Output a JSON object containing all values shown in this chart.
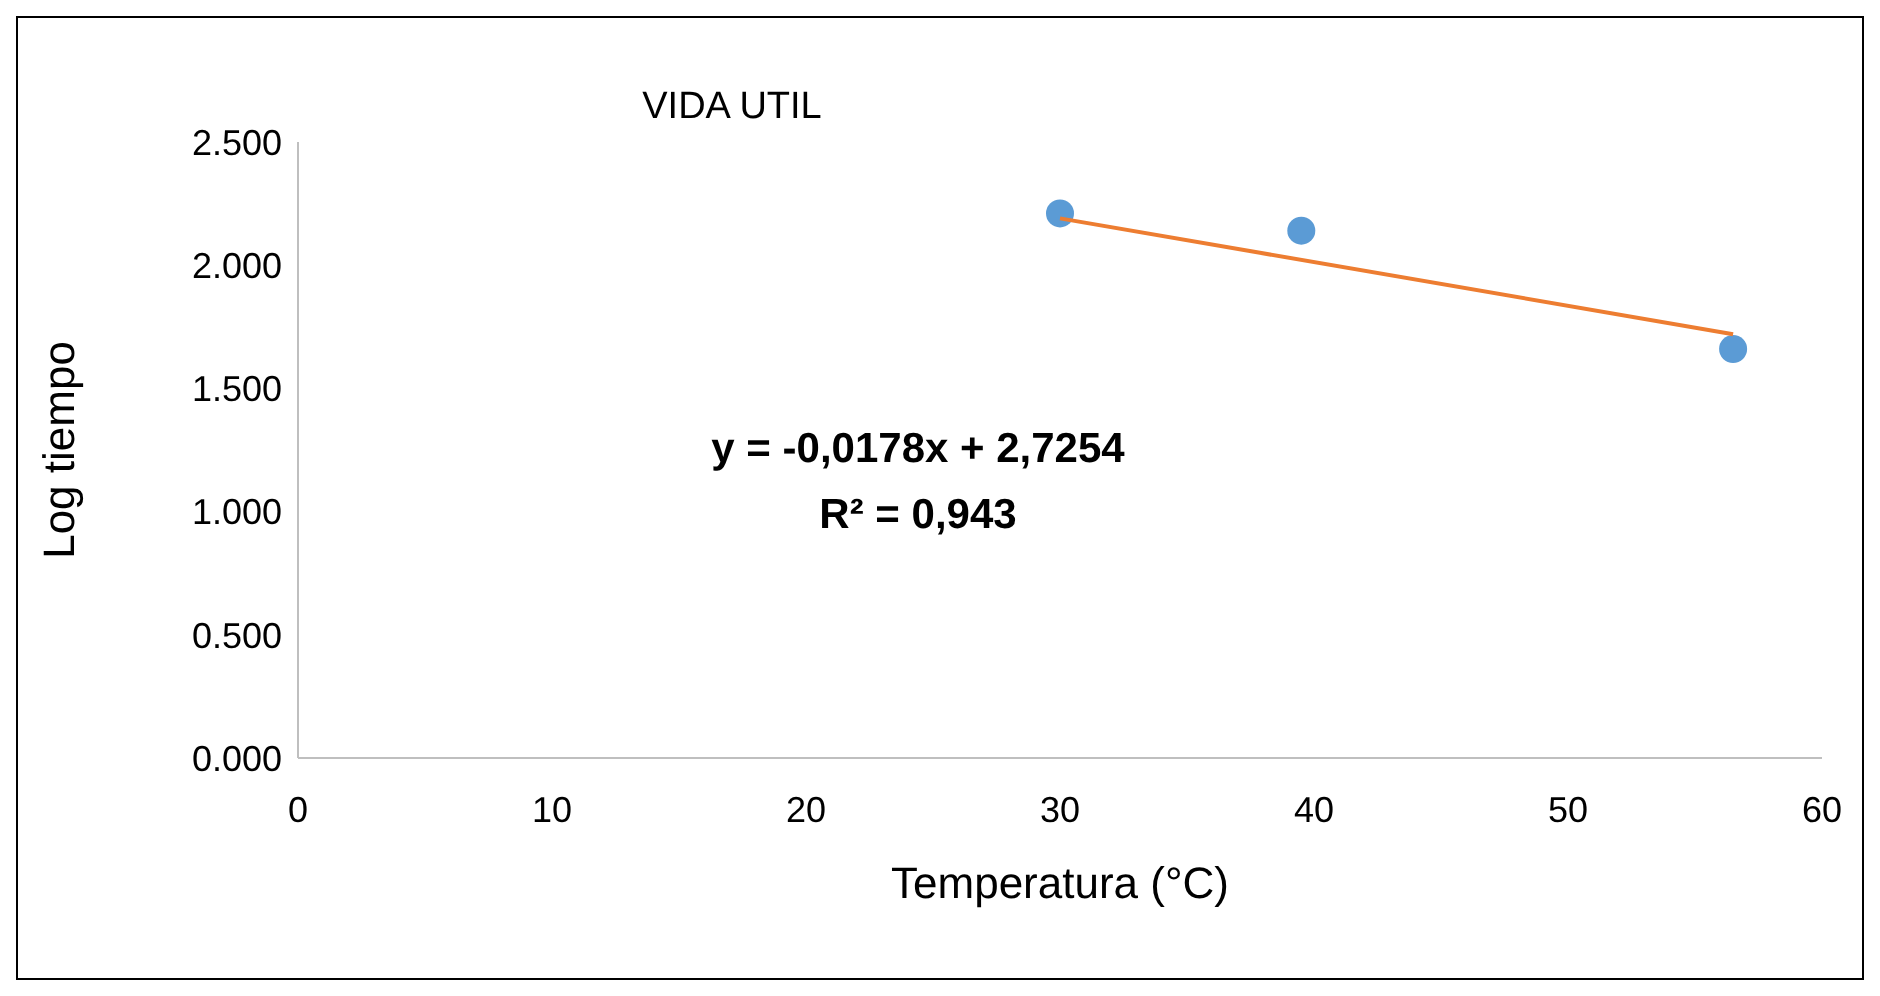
{
  "chart_data": {
    "type": "scatter",
    "title": "VIDA UTIL",
    "xlabel": "Temperatura (°C)",
    "ylabel": "Log tiempo",
    "series": [
      {
        "type": "scatter",
        "marker": "circle",
        "color": "#5b9bd5",
        "x": [
          30,
          39.5,
          56.5
        ],
        "values": [
          2.21,
          2.14,
          1.66
        ]
      },
      {
        "type": "line",
        "marker": "none",
        "color": "#ed7d31",
        "x": [
          30,
          56.5
        ],
        "values": [
          2.19,
          1.72
        ]
      }
    ],
    "xlim": [
      0,
      60
    ],
    "xticks": [
      0,
      10,
      20,
      30,
      40,
      50,
      60
    ],
    "ylim": [
      0,
      2.5
    ],
    "yticks": [
      {
        "value": 0,
        "label": "0.000"
      },
      {
        "value": 0.5,
        "label": "0.500"
      },
      {
        "value": 1,
        "label": "1.000"
      },
      {
        "value": 1.5,
        "label": "1.500"
      },
      {
        "value": 2,
        "label": "2.000"
      },
      {
        "value": 2.5,
        "label": "2.500"
      }
    ],
    "annotations": [
      "y = -0,0178x + 2,7254",
      "R² = 0,943"
    ],
    "grid": false,
    "legend": false
  }
}
